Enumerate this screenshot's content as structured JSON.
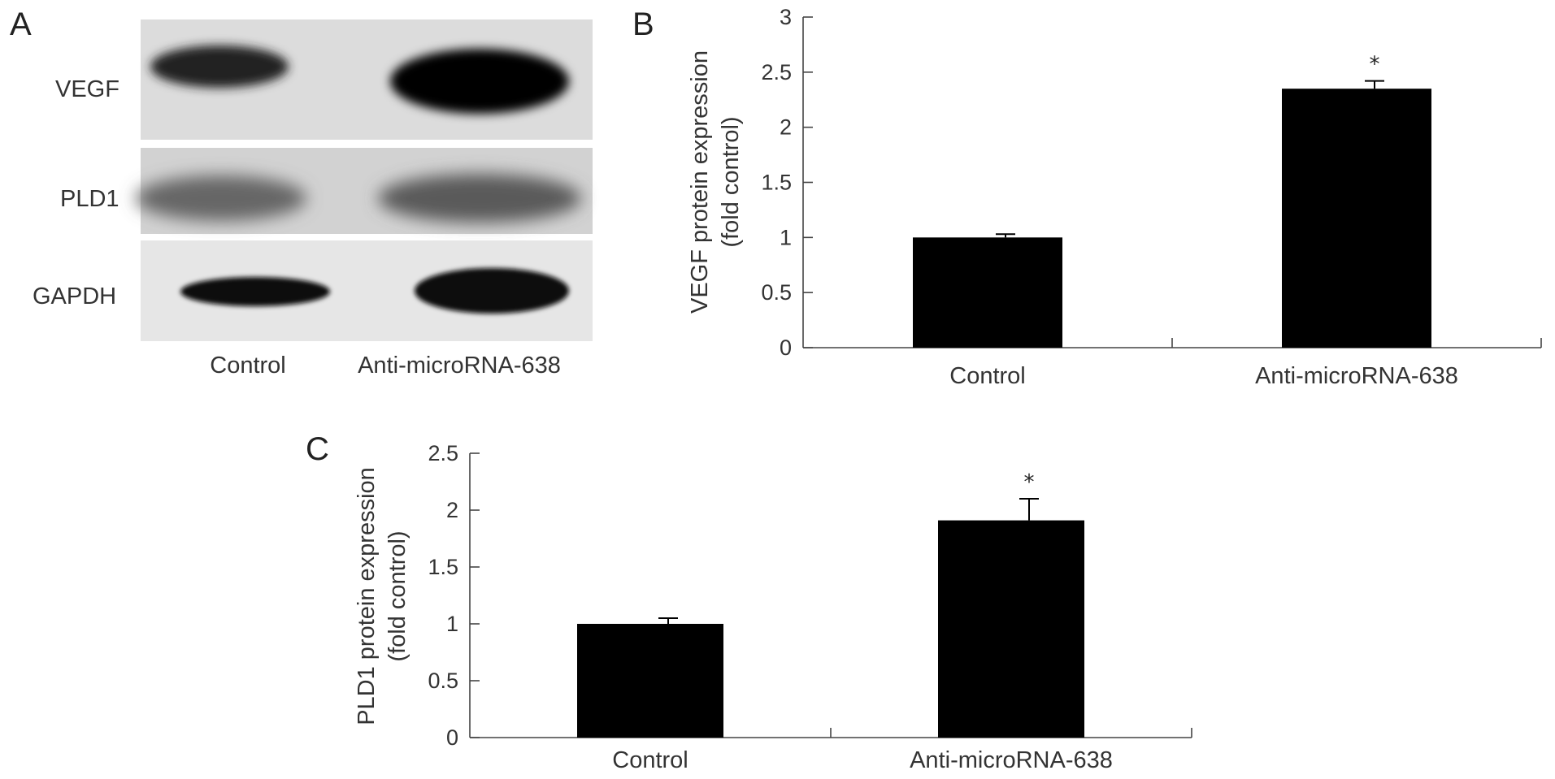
{
  "panels": {
    "a": "A",
    "b": "B",
    "c": "C"
  },
  "blot": {
    "rows": [
      {
        "label": "VEGF"
      },
      {
        "label": "PLD1"
      },
      {
        "label": "GAPDH"
      }
    ],
    "lanes": [
      "Control",
      "Anti-microRNA-638"
    ]
  },
  "chart_data": [
    {
      "panel": "B",
      "type": "bar",
      "categories": [
        "Control",
        "Anti-microRNA-638"
      ],
      "values": [
        1.0,
        2.35
      ],
      "errors": [
        0.03,
        0.07
      ],
      "significance": [
        "",
        "*"
      ],
      "ylabel_line1": "VEGF protein expression",
      "ylabel_line2": "(fold control)",
      "ylim": [
        0,
        3
      ],
      "yticks": [
        0,
        0.5,
        1,
        1.5,
        2,
        2.5,
        3
      ],
      "ytick_labels": [
        "0",
        "0.5",
        "1",
        "1.5",
        "2",
        "2.5",
        "3"
      ],
      "grid": false,
      "bar_color": "#000000"
    },
    {
      "panel": "C",
      "type": "bar",
      "categories": [
        "Control",
        "Anti-microRNA-638"
      ],
      "values": [
        1.0,
        1.91
      ],
      "errors": [
        0.05,
        0.19
      ],
      "significance": [
        "",
        "*"
      ],
      "ylabel_line1": "PLD1 protein expression",
      "ylabel_line2": "(fold control)",
      "ylim": [
        0,
        2.5
      ],
      "yticks": [
        0,
        0.5,
        1,
        1.5,
        2,
        2.5
      ],
      "ytick_labels": [
        "0",
        "0.5",
        "1",
        "1.5",
        "2",
        "2.5"
      ],
      "grid": false,
      "bar_color": "#000000"
    }
  ]
}
